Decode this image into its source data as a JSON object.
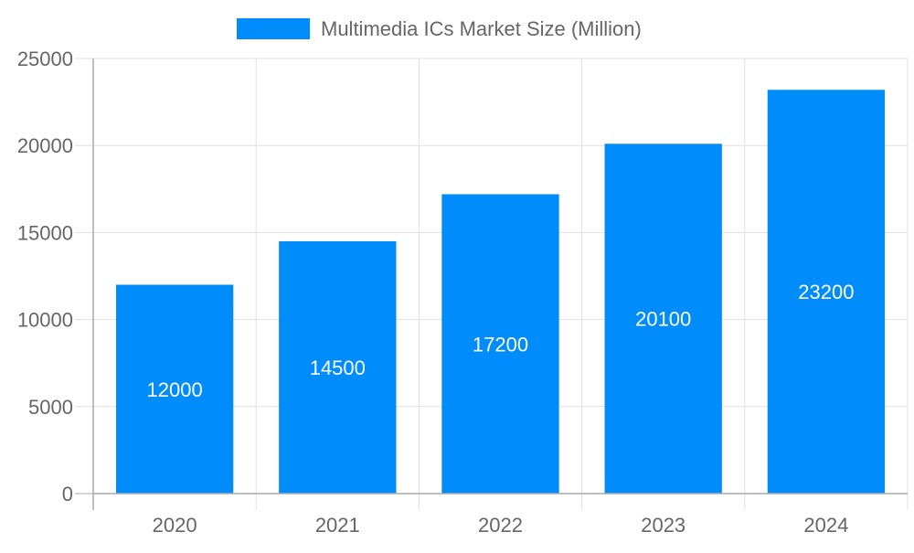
{
  "chart_data": {
    "type": "bar",
    "categories": [
      "2020",
      "2021",
      "2022",
      "2023",
      "2024"
    ],
    "series": [
      {
        "name": "Multimedia ICs Market Size (Million)",
        "values": [
          12000,
          14500,
          17200,
          20100,
          23200
        ],
        "color": "#008cfa"
      }
    ],
    "ylim": [
      0,
      25000
    ],
    "yticks": [
      0,
      5000,
      10000,
      15000,
      20000,
      25000
    ],
    "grid": true,
    "legend": "top",
    "data_labels": true,
    "text_color": "#666666",
    "grid_color": "#e0e0e0",
    "axis_color": "#aaaaaa"
  }
}
